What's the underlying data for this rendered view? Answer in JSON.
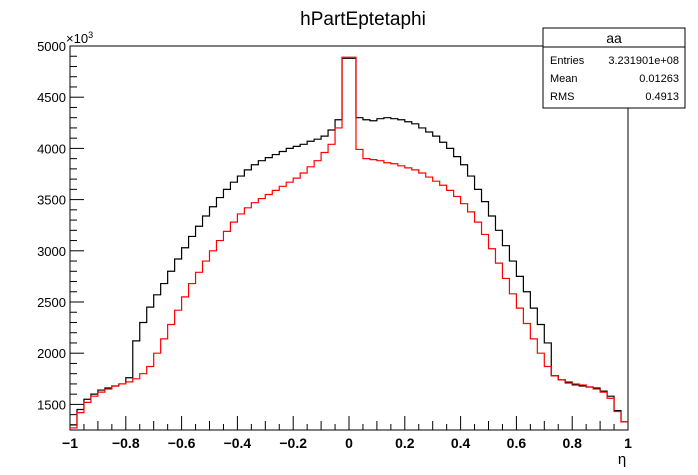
{
  "chart_data": {
    "type": "line",
    "title": "hPartEptetaphi",
    "xlabel": "η",
    "ylabel": "",
    "y_multiplier": "×10",
    "y_multiplier_exp": "3",
    "xlim": [
      -1,
      1
    ],
    "ylim": [
      1250,
      5000
    ],
    "x_ticks": [
      "−1",
      "−0.8",
      "−0.6",
      "−0.4",
      "−0.2",
      "0",
      "0.2",
      "0.4",
      "0.6",
      "0.8",
      "1"
    ],
    "y_ticks": [
      "1500",
      "2000",
      "2500",
      "3000",
      "3500",
      "4000",
      "4500",
      "5000"
    ],
    "stats_box": {
      "title": "aa",
      "rows": [
        {
          "label": "Entries",
          "value": "3.231901e+08"
        },
        {
          "label": "Mean",
          "value": "0.01263"
        },
        {
          "label": "RMS",
          "value": "0.4913"
        }
      ]
    },
    "bins": {
      "xmin": -1,
      "xmax": 1,
      "n": 80
    },
    "series": [
      {
        "color": "#000000",
        "values": [
          1300,
          1450,
          1550,
          1600,
          1640,
          1660,
          1680,
          1700,
          1760,
          2120,
          2300,
          2450,
          2570,
          2680,
          2800,
          2920,
          3030,
          3140,
          3240,
          3340,
          3430,
          3520,
          3600,
          3670,
          3730,
          3790,
          3840,
          3880,
          3910,
          3940,
          3970,
          4000,
          4020,
          4040,
          4070,
          4090,
          4120,
          4180,
          4280,
          4880,
          4880,
          4300,
          4280,
          4270,
          4290,
          4300,
          4290,
          4280,
          4260,
          4240,
          4200,
          4160,
          4120,
          4060,
          4000,
          3920,
          3840,
          3730,
          3600,
          3480,
          3340,
          3200,
          3050,
          2900,
          2750,
          2600,
          2440,
          2280,
          2100,
          1780,
          1740,
          1710,
          1690,
          1680,
          1670,
          1660,
          1630,
          1580,
          1440,
          1330
        ]
      },
      {
        "color": "#ff0000",
        "values": [
          1270,
          1420,
          1520,
          1580,
          1620,
          1650,
          1680,
          1700,
          1720,
          1750,
          1800,
          1870,
          2000,
          2140,
          2280,
          2420,
          2550,
          2680,
          2790,
          2900,
          3000,
          3100,
          3190,
          3280,
          3360,
          3420,
          3470,
          3510,
          3550,
          3590,
          3630,
          3670,
          3710,
          3760,
          3820,
          3880,
          3960,
          4040,
          4200,
          4890,
          4890,
          3990,
          3900,
          3890,
          3880,
          3860,
          3850,
          3830,
          3810,
          3790,
          3760,
          3720,
          3680,
          3640,
          3590,
          3530,
          3460,
          3380,
          3280,
          3160,
          3020,
          2880,
          2730,
          2580,
          2440,
          2290,
          2140,
          2000,
          1870,
          1780,
          1740,
          1720,
          1700,
          1690,
          1670,
          1650,
          1620,
          1560,
          1430,
          1330
        ]
      }
    ]
  }
}
